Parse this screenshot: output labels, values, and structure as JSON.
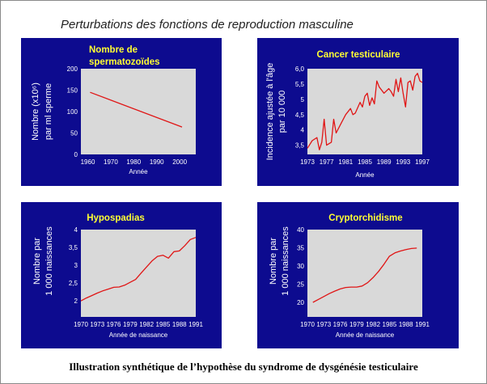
{
  "page_title": "Perturbations des fonctions de reproduction masculine",
  "caption": "Illustration synthétique de l’hypothèse du syndrome de dysgénésie testiculaire",
  "colors": {
    "panel_bg": "#0d0b8f",
    "plot_bg": "#d9d9d9",
    "line": "#e01515",
    "title": "#ffff33",
    "text": "#ffffff"
  },
  "chart_data": [
    {
      "type": "line",
      "title_lines": [
        "Nombre de",
        "spermatozoïdes"
      ],
      "ylabel_lines": [
        "Nombre (x10⁶)",
        "par ml sperme"
      ],
      "xlabel": "Année",
      "xlim": [
        1957,
        2007
      ],
      "ylim": [
        0,
        200
      ],
      "xticks": [
        1960,
        1970,
        1980,
        1990,
        2000
      ],
      "xtick_labels": [
        "1960",
        "1970",
        "1980",
        "1990",
        "2000"
      ],
      "yticks": [
        0,
        50,
        100,
        150,
        200
      ],
      "ytick_labels": [
        "0",
        "50",
        "100",
        "150",
        "200"
      ],
      "x": [
        1961,
        2001
      ],
      "y": [
        145,
        64
      ]
    },
    {
      "type": "line",
      "title_lines": [
        "Cancer testiculaire"
      ],
      "ylabel_lines": [
        "Incidence ajustée à l'âge",
        "par 10 000"
      ],
      "xlabel": "Année",
      "xlim": [
        1973,
        1997
      ],
      "ylim": [
        3.2,
        6.0
      ],
      "xticks": [
        1973,
        1977,
        1981,
        1985,
        1989,
        1993,
        1997
      ],
      "xtick_labels": [
        "1973",
        "1977",
        "1981",
        "1985",
        "1989",
        "1993",
        "1997"
      ],
      "yticks": [
        3.5,
        4.0,
        4.5,
        5.0,
        5.5,
        6.0
      ],
      "ytick_labels": [
        "3,5",
        "4",
        "4,5",
        "5",
        "5,5",
        "6,0"
      ],
      "x": [
        1973,
        1974,
        1975,
        1975.5,
        1976,
        1976.5,
        1977,
        1978,
        1978.5,
        1979,
        1980,
        1981,
        1982,
        1982.5,
        1983,
        1984,
        1984.5,
        1985,
        1985.5,
        1986,
        1986.5,
        1987,
        1987.5,
        1988,
        1989,
        1990,
        1990.5,
        1991,
        1991.5,
        1992,
        1992.5,
        1993,
        1993.5,
        1994,
        1994.5,
        1995,
        1995.5,
        1996,
        1996.5,
        1997
      ],
      "y": [
        3.4,
        3.65,
        3.75,
        3.35,
        3.6,
        4.35,
        3.5,
        3.6,
        4.35,
        3.9,
        4.2,
        4.5,
        4.7,
        4.5,
        4.55,
        4.9,
        4.75,
        5.1,
        5.2,
        4.8,
        5.05,
        4.85,
        5.6,
        5.4,
        5.2,
        5.35,
        5.25,
        5.1,
        5.65,
        5.25,
        5.7,
        5.2,
        4.75,
        5.55,
        5.6,
        5.3,
        5.75,
        5.85,
        5.6,
        5.55
      ]
    },
    {
      "type": "line",
      "title_lines": [
        "Hypospadias"
      ],
      "ylabel_lines": [
        "Nombre par",
        "1 000 naissances"
      ],
      "xlabel": "Année de naissance",
      "xlim": [
        1970,
        1991
      ],
      "ylim": [
        1.55,
        4.0
      ],
      "xticks": [
        1970,
        1973,
        1976,
        1979,
        1982,
        1985,
        1988,
        1991
      ],
      "xtick_labels": [
        "1970",
        "1973",
        "1976",
        "1979",
        "1982",
        "1985",
        "1988",
        "1991"
      ],
      "yticks": [
        2,
        2.5,
        3,
        3.5,
        4
      ],
      "ytick_labels": [
        "2",
        "2,5",
        "3",
        "3,5",
        "4"
      ],
      "x": [
        1970,
        1971,
        1972,
        1973,
        1974,
        1975,
        1976,
        1977,
        1978,
        1979,
        1980,
        1981,
        1982,
        1983,
        1984,
        1985,
        1986,
        1987,
        1988,
        1989,
        1990,
        1991
      ],
      "y": [
        2.0,
        2.08,
        2.15,
        2.22,
        2.28,
        2.33,
        2.38,
        2.39,
        2.44,
        2.52,
        2.6,
        2.78,
        2.95,
        3.12,
        3.25,
        3.28,
        3.2,
        3.38,
        3.4,
        3.55,
        3.72,
        3.78
      ]
    },
    {
      "type": "line",
      "title_lines": [
        "Cryptorchidisme"
      ],
      "ylabel_lines": [
        "Nombre par",
        "1 000 naissances"
      ],
      "xlabel": "Année de naissance",
      "xlim": [
        1970,
        1991
      ],
      "ylim": [
        16,
        40
      ],
      "xticks": [
        1970,
        1973,
        1976,
        1979,
        1982,
        1985,
        1988,
        1991
      ],
      "xtick_labels": [
        "1970",
        "1973",
        "1976",
        "1979",
        "1982",
        "1985",
        "1988",
        "1991"
      ],
      "yticks": [
        20,
        25,
        30,
        35,
        40
      ],
      "ytick_labels": [
        "20",
        "25",
        "30",
        "35",
        "40"
      ],
      "x": [
        1971,
        1972,
        1973,
        1974,
        1975,
        1976,
        1977,
        1978,
        1979,
        1980,
        1981,
        1982,
        1983,
        1984,
        1985,
        1986,
        1987,
        1988,
        1989,
        1990
      ],
      "y": [
        20.0,
        20.8,
        21.6,
        22.4,
        23.1,
        23.7,
        24.1,
        24.2,
        24.2,
        24.5,
        25.4,
        26.8,
        28.5,
        30.5,
        32.7,
        33.6,
        34.1,
        34.5,
        34.8,
        34.9
      ]
    }
  ]
}
